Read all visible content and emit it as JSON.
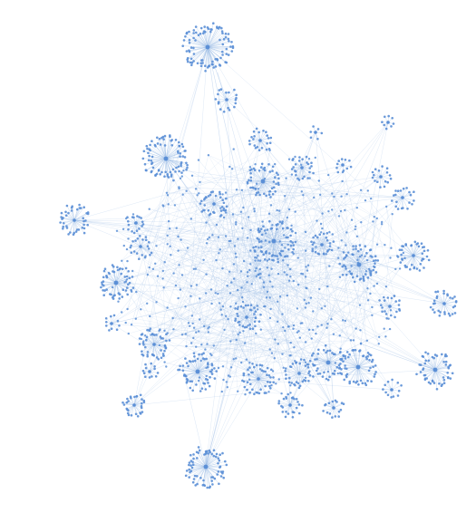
{
  "graph": {
    "kind": "force-directed network",
    "labels": "none",
    "colors": {
      "background": "#ffffff",
      "node": "#5b8fd6",
      "edge": "#9dbde6"
    },
    "structure": {
      "hub_clusters": 34,
      "dense_core": true
    }
  }
}
